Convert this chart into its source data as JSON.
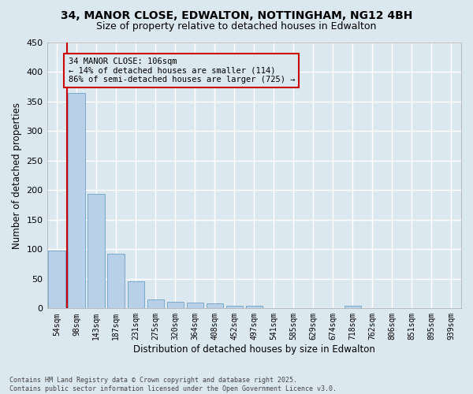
{
  "title": "34, MANOR CLOSE, EDWALTON, NOTTINGHAM, NG12 4BH",
  "subtitle": "Size of property relative to detached houses in Edwalton",
  "xlabel": "Distribution of detached houses by size in Edwalton",
  "ylabel": "Number of detached properties",
  "bar_color": "#b8d0e8",
  "bar_edge_color": "#7aaac8",
  "background_color": "#dce8f0",
  "grid_color": "#ffffff",
  "annotation_box_color": "#cc0000",
  "vline_color": "#cc0000",
  "categories": [
    "54sqm",
    "98sqm",
    "143sqm",
    "187sqm",
    "231sqm",
    "275sqm",
    "320sqm",
    "364sqm",
    "408sqm",
    "452sqm",
    "497sqm",
    "541sqm",
    "585sqm",
    "629sqm",
    "674sqm",
    "718sqm",
    "762sqm",
    "806sqm",
    "851sqm",
    "895sqm",
    "939sqm"
  ],
  "values": [
    98,
    365,
    194,
    93,
    46,
    15,
    11,
    10,
    8,
    5,
    5,
    0,
    0,
    0,
    0,
    4,
    0,
    0,
    0,
    0,
    0
  ],
  "ylim": [
    0,
    450
  ],
  "yticks": [
    0,
    50,
    100,
    150,
    200,
    250,
    300,
    350,
    400,
    450
  ],
  "annotation_text": "34 MANOR CLOSE: 106sqm\n← 14% of detached houses are smaller (114)\n86% of semi-detached houses are larger (725) →",
  "footer_text": "Contains HM Land Registry data © Crown copyright and database right 2025.\nContains public sector information licensed under the Open Government Licence v3.0.",
  "figsize": [
    6.0,
    5.0
  ],
  "dpi": 100
}
